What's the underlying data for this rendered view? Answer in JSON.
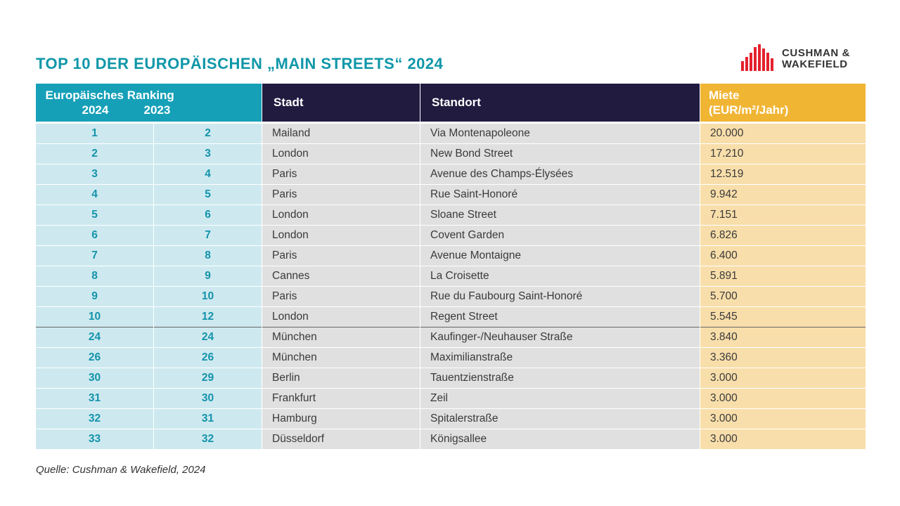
{
  "title": "TOP 10 DER EUROPÄISCHEN „MAIN STREETS“ 2024",
  "logo": {
    "line1": "CUSHMAN &",
    "line2": "WAKEFIELD",
    "color": "#e4212d"
  },
  "header": {
    "ranking": "Europäisches Ranking",
    "year1": "2024",
    "year2": "2023",
    "city": "Stadt",
    "location": "Standort",
    "rent_line1": "Miete",
    "rent_line2": "(EUR/m²/Jahr)"
  },
  "rows": [
    {
      "r2024": "1",
      "r2023": "2",
      "city": "Mailand",
      "street": "Via Montenapoleone",
      "rent": "20.000"
    },
    {
      "r2024": "2",
      "r2023": "3",
      "city": "London",
      "street": "New Bond Street",
      "rent": "17.210"
    },
    {
      "r2024": "3",
      "r2023": "4",
      "city": "Paris",
      "street": "Avenue des Champs-Élysées",
      "rent": "12.519"
    },
    {
      "r2024": "4",
      "r2023": "5",
      "city": "Paris",
      "street": "Rue Saint-Honoré",
      "rent": "9.942"
    },
    {
      "r2024": "5",
      "r2023": "6",
      "city": "London",
      "street": "Sloane Street",
      "rent": "7.151"
    },
    {
      "r2024": "6",
      "r2023": "7",
      "city": "London",
      "street": "Covent Garden",
      "rent": "6.826"
    },
    {
      "r2024": "7",
      "r2023": "8",
      "city": "Paris",
      "street": "Avenue Montaigne",
      "rent": "6.400"
    },
    {
      "r2024": "8",
      "r2023": "9",
      "city": "Cannes",
      "street": "La Croisette",
      "rent": "5.891"
    },
    {
      "r2024": "9",
      "r2023": "10",
      "city": "Paris",
      "street": "Rue du Faubourg Saint-Honoré",
      "rent": "5.700"
    },
    {
      "r2024": "10",
      "r2023": "12",
      "city": "London",
      "street": "Regent Street",
      "rent": "5.545"
    },
    {
      "r2024": "24",
      "r2023": "24",
      "city": "München",
      "street": "Kaufinger-/Neuhauser Straße",
      "rent": "3.840"
    },
    {
      "r2024": "26",
      "r2023": "26",
      "city": "München",
      "street": "Maximilianstraße",
      "rent": "3.360"
    },
    {
      "r2024": "30",
      "r2023": "29",
      "city": "Berlin",
      "street": "Tauentzienstraße",
      "rent": "3.000"
    },
    {
      "r2024": "31",
      "r2023": "30",
      "city": "Frankfurt",
      "street": "Zeil",
      "rent": "3.000"
    },
    {
      "r2024": "32",
      "r2023": "31",
      "city": "Hamburg",
      "street": "Spitalerstraße",
      "rent": "3.000"
    },
    {
      "r2024": "33",
      "r2023": "32",
      "city": "Düsseldorf",
      "street": "Königsallee",
      "rent": "3.000"
    }
  ],
  "source": "Quelle:  Cushman & Wakefield, 2024"
}
